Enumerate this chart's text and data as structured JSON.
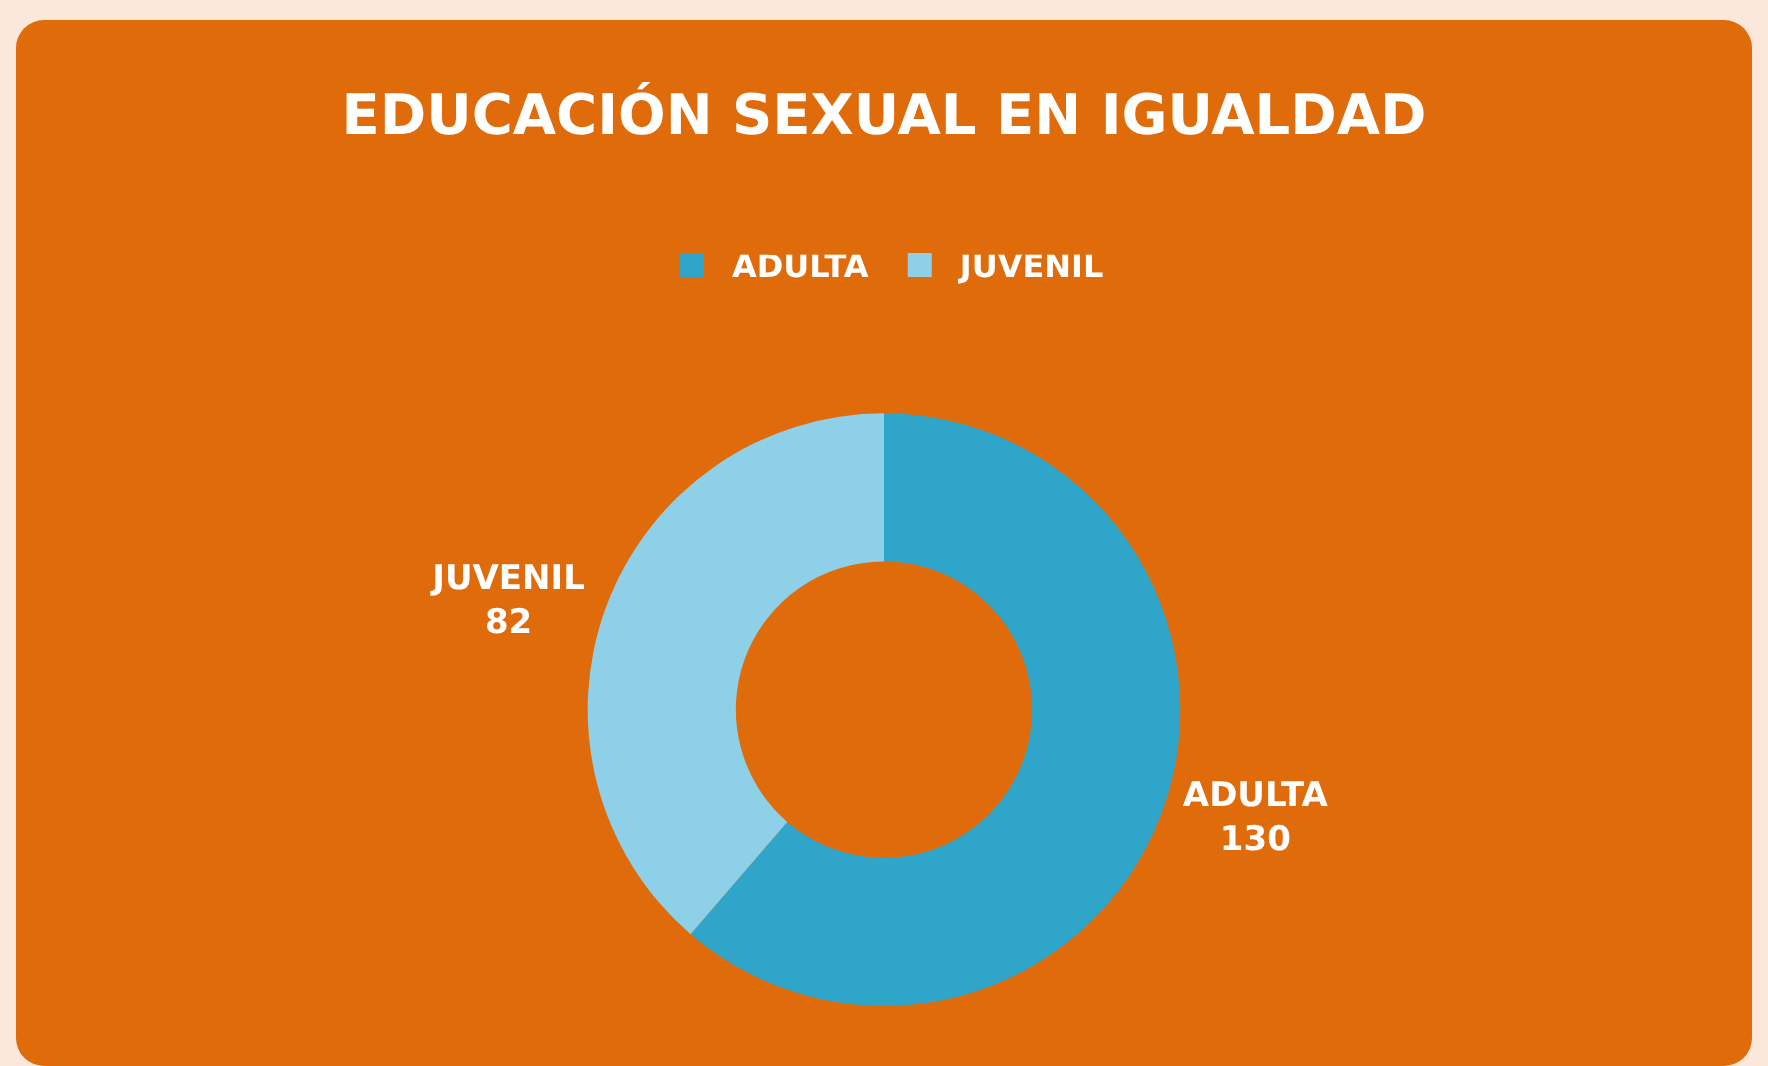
{
  "chart_data": {
    "type": "donut",
    "title": "EDUCACIÓN SEXUAL EN IGUALDAD",
    "categories": [
      "ADULTA",
      "JUVENIL"
    ],
    "values": [
      130,
      82
    ],
    "colors": [
      "#2fa6c9",
      "#8ed0e7"
    ],
    "legend": "top",
    "data_labels": true
  }
}
